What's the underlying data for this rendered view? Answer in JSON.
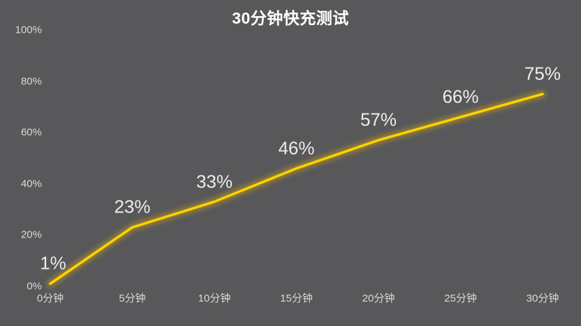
{
  "title": "30分钟快充测试",
  "colors": {
    "background": "#58585a",
    "line": "#ffd400",
    "glow": "#e8b400",
    "title_text": "#ffffff",
    "axis_text": "#d9d9d9",
    "data_label_text": "#ececec"
  },
  "chart_data": {
    "type": "line",
    "title": "30分钟快充测试",
    "categories": [
      "0分钟",
      "5分钟",
      "10分钟",
      "15分钟",
      "20分钟",
      "25分钟",
      "30分钟"
    ],
    "values": [
      1,
      23,
      33,
      46,
      57,
      66,
      75
    ],
    "data_labels": [
      "1%",
      "23%",
      "33%",
      "46%",
      "57%",
      "66%",
      "75%"
    ],
    "y_ticks": [
      "0%",
      "20%",
      "40%",
      "60%",
      "80%",
      "100%"
    ],
    "xlabel": "",
    "ylabel": "",
    "ylim": [
      0,
      100
    ],
    "grid": false,
    "legend": "none"
  }
}
